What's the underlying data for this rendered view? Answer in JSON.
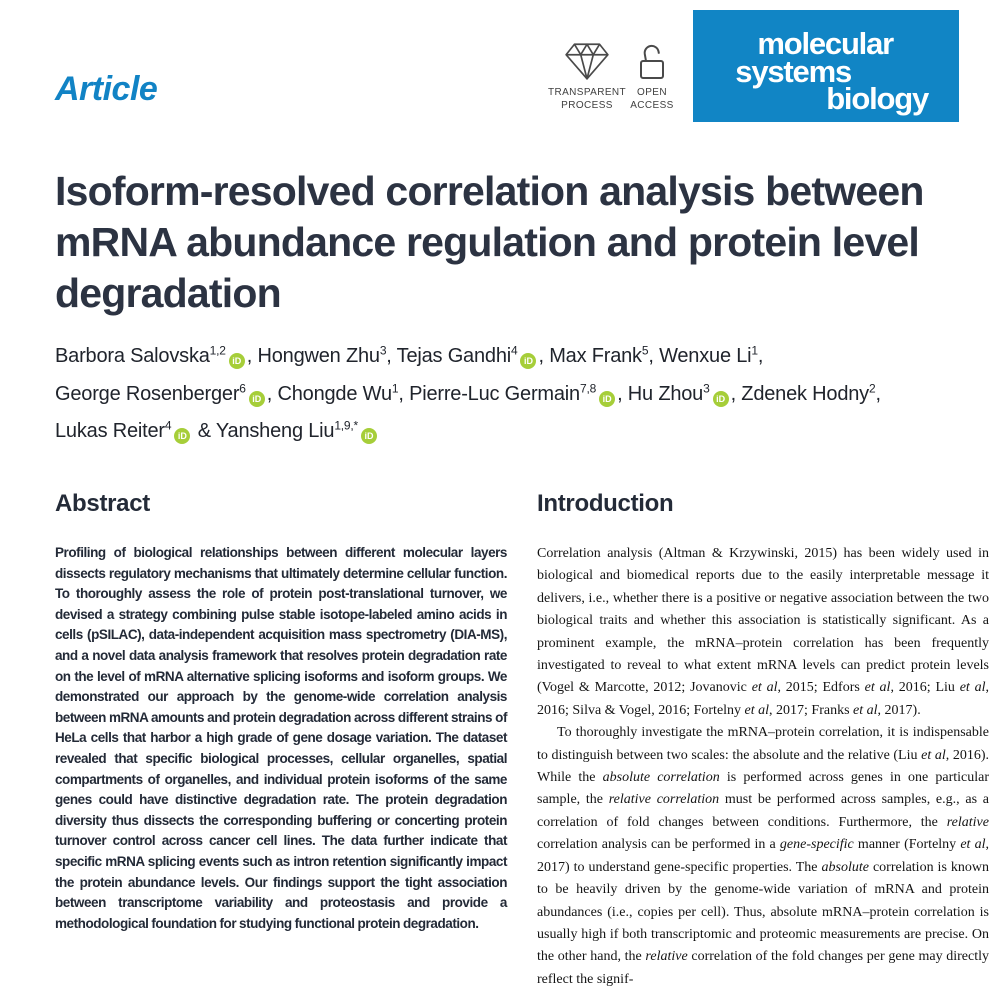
{
  "theme": {
    "brand_blue": "#1185c5",
    "article_label_blue": "#1183c5",
    "orcid_green": "#a6ce39",
    "title_color": "#2c3342",
    "abstract_text_color": "#232a37",
    "intro_text_color": "#141414"
  },
  "icons": {
    "orcid_label": "iD",
    "transparent_process": "diamond-icon",
    "open_access": "open-padlock-icon"
  },
  "header": {
    "article_label": "Article",
    "badges": [
      {
        "icon": "diamond-icon",
        "label": "TRANSPARENT\nPROCESS"
      },
      {
        "icon": "open-padlock-icon",
        "label": "OPEN\nACCESS"
      }
    ],
    "logo": {
      "lines": [
        "molecular",
        "systems",
        "biology"
      ],
      "bg_color": "#1185c5",
      "text_color": "#ffffff"
    }
  },
  "paper": {
    "title": "Isoform-resolved correlation analysis between mRNA abundance regulation and protein level degradation"
  },
  "authors": {
    "lines": [
      [
        {
          "t": "Barbora Salovska"
        },
        {
          "sup": "1,2"
        },
        {
          "orcid": true
        },
        {
          "t": ", Hongwen Zhu"
        },
        {
          "sup": "3"
        },
        {
          "t": ", Tejas Gandhi"
        },
        {
          "sup": "4"
        },
        {
          "orcid": true
        },
        {
          "t": ", Max Frank"
        },
        {
          "sup": "5"
        },
        {
          "t": ", Wenxue Li"
        },
        {
          "sup": "1"
        },
        {
          "t": ","
        }
      ],
      [
        {
          "t": "George Rosenberger"
        },
        {
          "sup": "6"
        },
        {
          "orcid": true
        },
        {
          "t": ", Chongde Wu"
        },
        {
          "sup": "1"
        },
        {
          "t": ", Pierre-Luc Germain"
        },
        {
          "sup": "7,8"
        },
        {
          "orcid": true
        },
        {
          "t": ", Hu Zhou"
        },
        {
          "sup": "3"
        },
        {
          "orcid": true
        },
        {
          "t": ", Zdenek Hodny"
        },
        {
          "sup": "2"
        },
        {
          "t": ","
        }
      ],
      [
        {
          "t": "Lukas Reiter"
        },
        {
          "sup": "4"
        },
        {
          "orcid": true
        },
        {
          "t": " & Yansheng Liu"
        },
        {
          "sup": "1,9,*"
        },
        {
          "orcid": true
        }
      ]
    ]
  },
  "sections": {
    "abstract": {
      "heading": "Abstract",
      "text": "Profiling of biological relationships between different molecular layers dissects regulatory mechanisms that ultimately determine cellular function. To thoroughly assess the role of protein post-translational turnover, we devised a strategy combining pulse stable isotope-labeled amino acids in cells (pSILAC), data-independent acquisition mass spectrometry (DIA-MS), and a novel data analysis framework that resolves protein degradation rate on the level of mRNA alternative splicing isoforms and isoform groups. We demonstrated our approach by the genome-wide correlation analysis between mRNA amounts and protein degradation across different strains of HeLa cells that harbor a high grade of gene dosage variation. The dataset revealed that specific biological processes, cellular organelles, spatial compartments of organelles, and individual protein isoforms of the same genes could have distinctive degradation rate. The protein degradation diversity thus dissects the corresponding buffering or concerting protein turnover control across cancer cell lines. The data further indicate that specific mRNA splicing events such as intron retention significantly impact the protein abundance levels. Our findings support the tight association between transcriptome variability and proteostasis and provide a methodological foundation for studying functional protein degradation."
    },
    "introduction": {
      "heading": "Introduction",
      "paragraphs": [
        [
          {
            "t": "Correlation analysis (Altman & Krzywinski, 2015) has been widely used in biological and biomedical reports due to the easily interpretable message it delivers, i.e., whether there is a positive or negative association between the two biological traits and whether this association is statistically significant. As a prominent example, the mRNA–protein correlation has been frequently investigated to reveal to what extent mRNA levels can predict protein levels (Vogel & Marcotte, 2012; Jovanovic "
          },
          {
            "t": "et al",
            "i": true
          },
          {
            "t": ", 2015; Edfors "
          },
          {
            "t": "et al",
            "i": true
          },
          {
            "t": ", 2016; Liu "
          },
          {
            "t": "et al",
            "i": true
          },
          {
            "t": ", 2016; Silva & Vogel, 2016; Fortelny "
          },
          {
            "t": "et al",
            "i": true
          },
          {
            "t": ", 2017; Franks "
          },
          {
            "t": "et al",
            "i": true
          },
          {
            "t": ", 2017)."
          }
        ],
        [
          {
            "t": "To thoroughly investigate the mRNA–protein correlation, it is indispensable to distinguish between two scales: the absolute and the relative (Liu "
          },
          {
            "t": "et al",
            "i": true
          },
          {
            "t": ", 2016). While the "
          },
          {
            "t": "absolute correlation",
            "i": true
          },
          {
            "t": " is performed across genes in one particular sample, the "
          },
          {
            "t": "relative correlation",
            "i": true
          },
          {
            "t": " must be performed across samples, e.g., as a correlation of fold changes between conditions. Furthermore, the "
          },
          {
            "t": "relative",
            "i": true
          },
          {
            "t": " correlation analysis can be performed in a "
          },
          {
            "t": "gene-specific",
            "i": true
          },
          {
            "t": " manner (Fortelny "
          },
          {
            "t": "et al",
            "i": true
          },
          {
            "t": ", 2017) to understand gene-specific properties. The "
          },
          {
            "t": "absolute",
            "i": true
          },
          {
            "t": " correlation is known to be heavily driven by the genome-wide variation of mRNA and protein abundances (i.e., copies per cell). Thus, absolute mRNA–protein correlation is usually high if both transcriptomic and proteomic measurements are precise. On the other hand, the "
          },
          {
            "t": "relative",
            "i": true
          },
          {
            "t": " correlation of the fold changes per gene may directly reflect the signif-"
          }
        ]
      ]
    }
  }
}
